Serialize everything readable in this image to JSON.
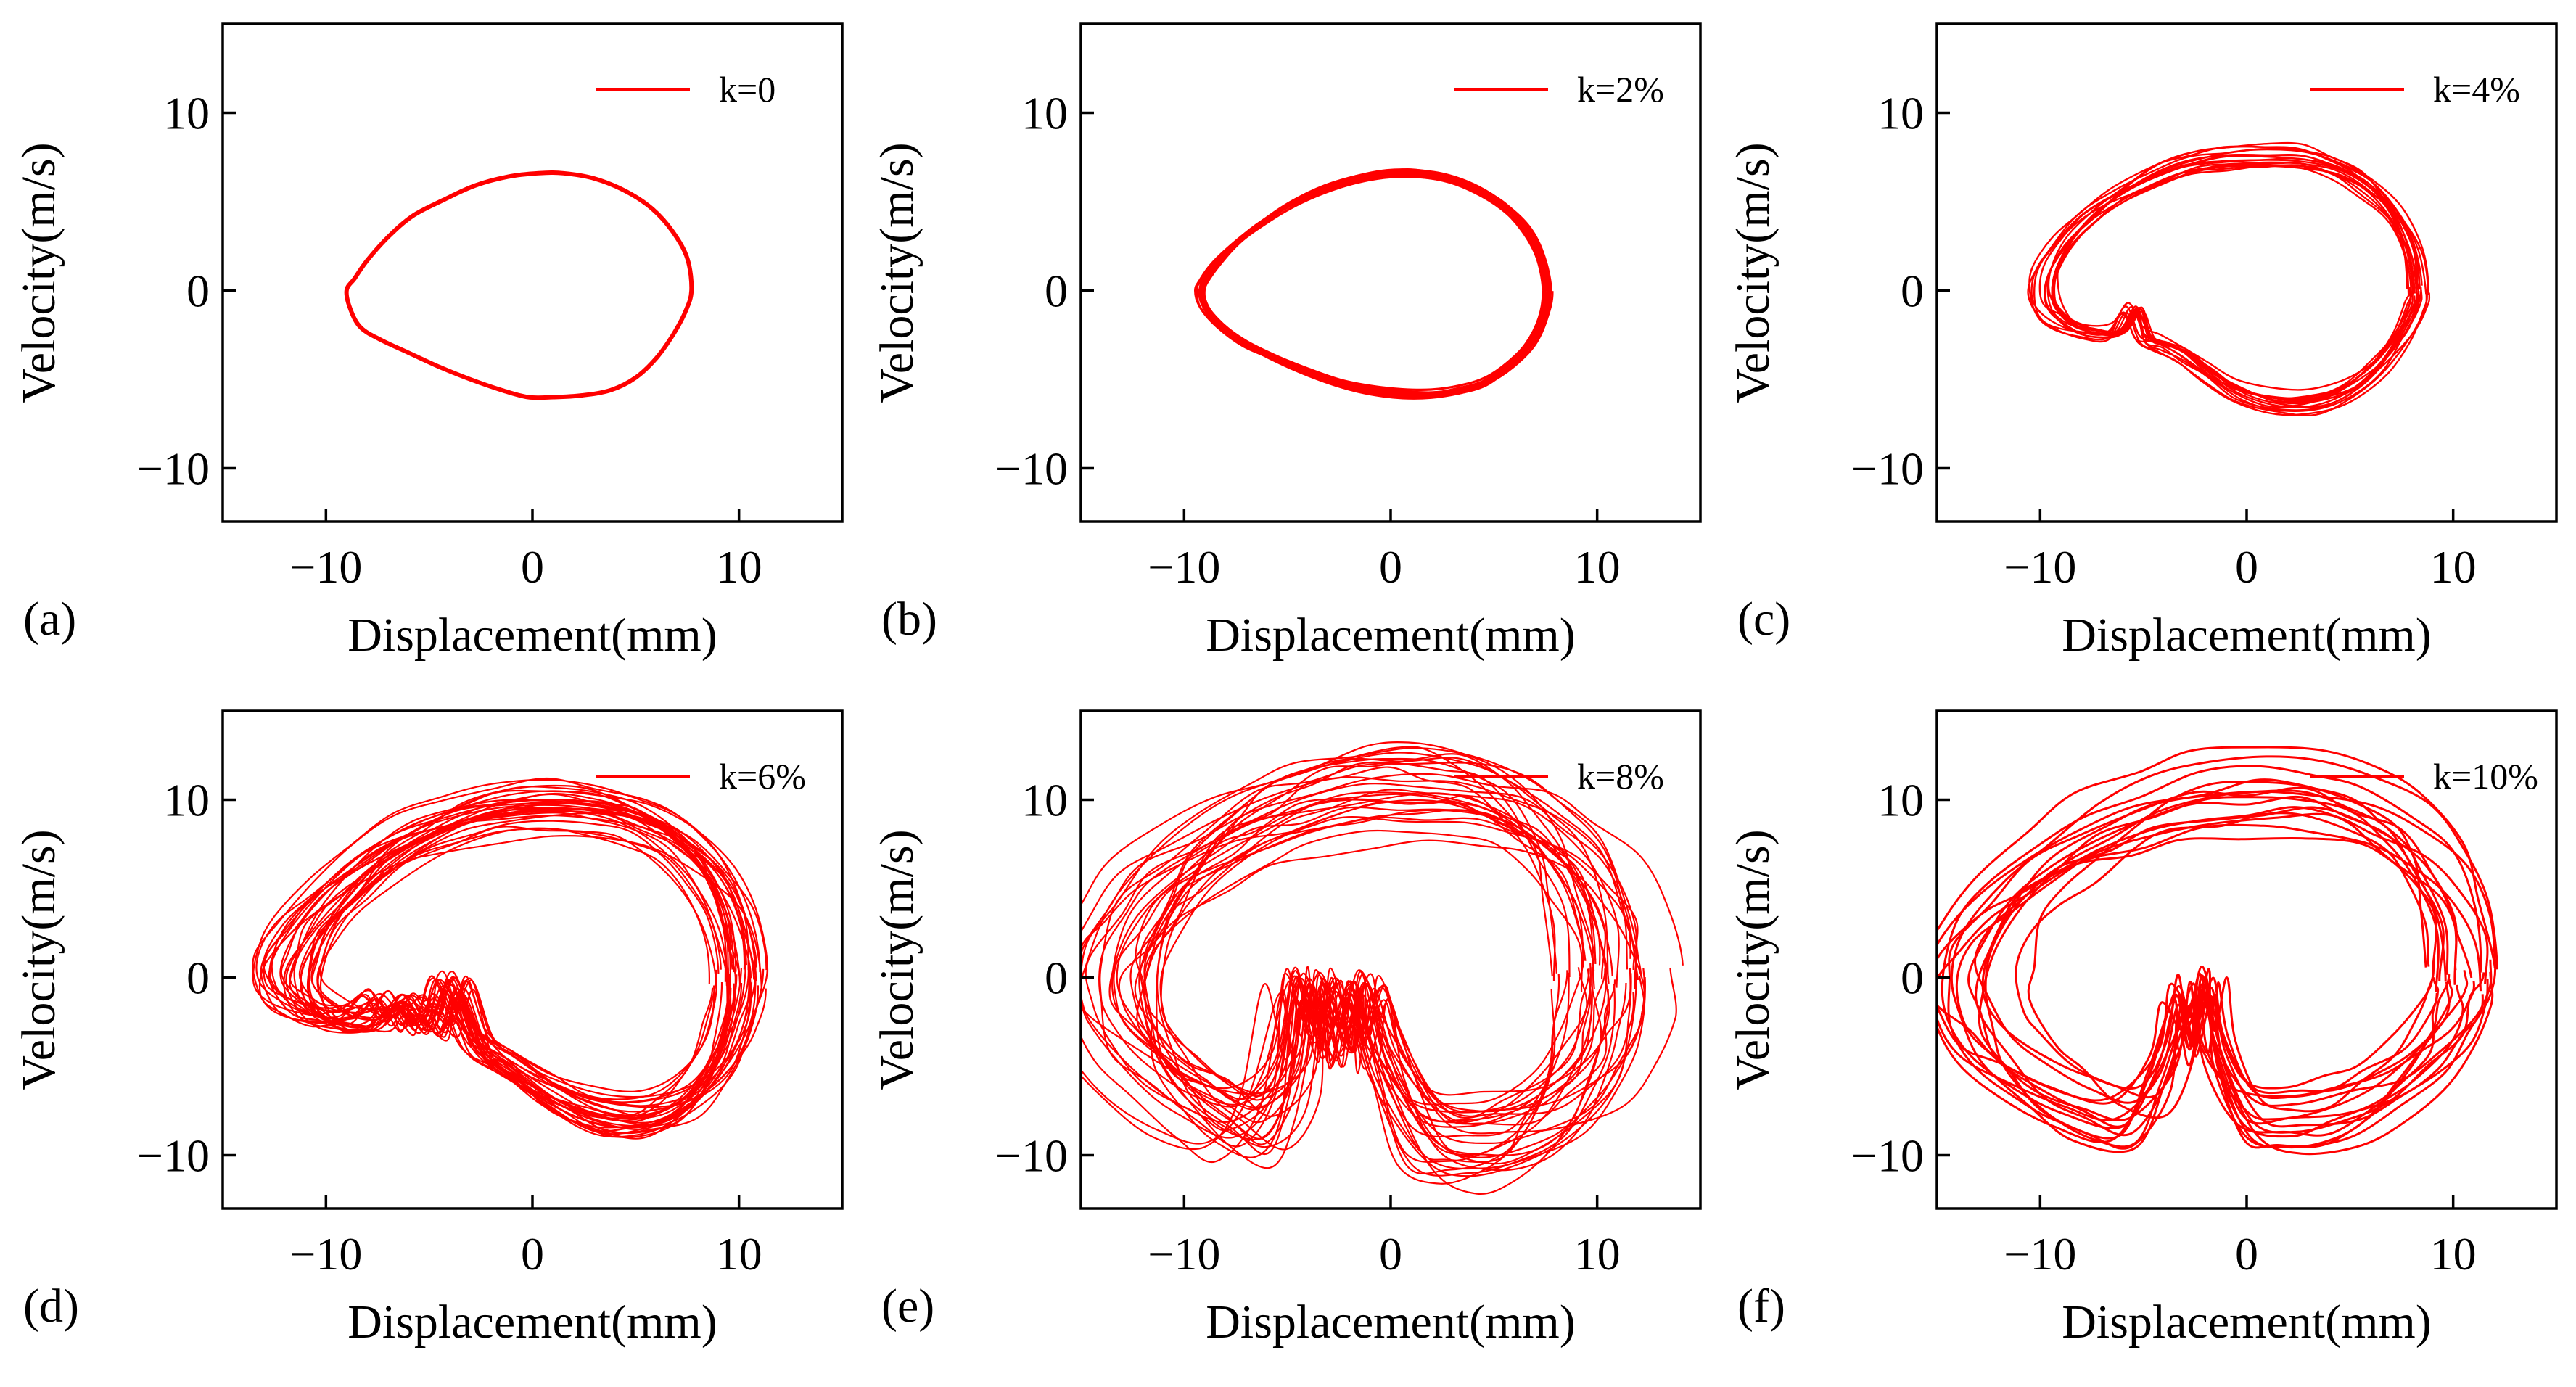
{
  "figure": {
    "panel_count": 6,
    "line_color": "#ff0000",
    "axis_color": "#000000"
  },
  "chart_data": [
    {
      "type": "line",
      "panel_label": "(a)",
      "legend": "k=0",
      "xlabel": "Displacement(mm)",
      "ylabel": "Velocity(m/s)",
      "xlim": [
        -15,
        15
      ],
      "ylim": [
        -13,
        15
      ],
      "xticks": [
        -10,
        0,
        10
      ],
      "xtick_labels": [
        "−10",
        "0",
        "10"
      ],
      "yticks": [
        -10,
        0,
        10
      ],
      "ytick_labels": [
        "−10",
        "0",
        "10"
      ],
      "grid": false,
      "legend_position": "top-right",
      "series": [
        {
          "name": "k=0",
          "description": "single closed limit cycle",
          "x": [
            7.7,
            7.5,
            6.8,
            5.8,
            4.5,
            3.0,
            1.5,
            0.3,
            -1.2,
            -2.8,
            -4.3,
            -5.8,
            -7.0,
            -8.0,
            -8.6,
            -9.0,
            -8.8,
            -8.3,
            -7.3,
            -6.0,
            -4.5,
            -3.0,
            -1.5,
            -0.2,
            1.0,
            2.4,
            3.8,
            5.0,
            6.0,
            6.8,
            7.4,
            7.7
          ],
          "y": [
            0.0,
            1.8,
            3.3,
            4.6,
            5.6,
            6.3,
            6.6,
            6.6,
            6.4,
            5.9,
            5.1,
            4.2,
            3.0,
            1.7,
            0.7,
            0.0,
            -1.1,
            -2.1,
            -2.8,
            -3.5,
            -4.3,
            -5.0,
            -5.6,
            -6.0,
            -6.0,
            -5.9,
            -5.6,
            -4.9,
            -3.8,
            -2.5,
            -1.2,
            0.0
          ]
        }
      ]
    },
    {
      "type": "line",
      "panel_label": "(b)",
      "legend": "k=2%",
      "xlabel": "Displacement(mm)",
      "ylabel": "Velocity(m/s)",
      "xlim": [
        -15,
        15
      ],
      "ylim": [
        -13,
        15
      ],
      "xticks": [
        -10,
        0,
        10
      ],
      "xtick_labels": [
        "−10",
        "0",
        "10"
      ],
      "yticks": [
        -10,
        0,
        10
      ],
      "ytick_labels": [
        "−10",
        "0",
        "10"
      ],
      "grid": false,
      "legend_position": "top-right",
      "series": [
        {
          "name": "k=2%",
          "description": "thick band of nearly coincident limit cycles",
          "x": [
            7.6,
            7.3,
            6.6,
            5.5,
            4.2,
            2.8,
            1.2,
            -0.2,
            -1.7,
            -3.3,
            -4.8,
            -6.2,
            -7.4,
            -8.4,
            -9.0,
            -9.2,
            -9.0,
            -8.2,
            -7.0,
            -5.6,
            -4.0,
            -2.4,
            -0.9,
            0.6,
            2.0,
            3.4,
            4.7,
            5.8,
            6.8,
            7.4,
            7.6
          ],
          "y": [
            0.0,
            1.9,
            3.5,
            4.8,
            5.7,
            6.3,
            6.6,
            6.6,
            6.3,
            5.7,
            4.9,
            3.9,
            2.8,
            1.6,
            0.6,
            0.0,
            -0.9,
            -2.0,
            -3.0,
            -3.8,
            -4.6,
            -5.2,
            -5.6,
            -5.8,
            -5.8,
            -5.6,
            -5.1,
            -4.2,
            -3.0,
            -1.5,
            0.0
          ]
        }
      ]
    },
    {
      "type": "line",
      "panel_label": "(c)",
      "legend": "k=4%",
      "xlabel": "Displacement(mm)",
      "ylabel": "Velocity(m/s)",
      "xlim": [
        -15,
        15
      ],
      "ylim": [
        -13,
        15
      ],
      "xticks": [
        -10,
        0,
        10
      ],
      "xtick_labels": [
        "−10",
        "0",
        "10"
      ],
      "yticks": [
        -10,
        0,
        10
      ],
      "ytick_labels": [
        "−10",
        "0",
        "10"
      ],
      "grid": false,
      "legend_position": "top-right",
      "series": [
        {
          "name": "k=4%",
          "description": "quasi-periodic band of cycles with small spikes near x=-5",
          "x": [
            8.4,
            8.1,
            7.2,
            5.9,
            4.4,
            2.8,
            1.0,
            -0.8,
            -2.6,
            -4.3,
            -6.0,
            -7.5,
            -8.7,
            -9.5,
            -9.7,
            -9.4,
            -8.6,
            -7.5,
            -6.2,
            -5.4,
            -4.8,
            -4.0,
            -3.0,
            -1.8,
            -0.3,
            1.5,
            3.3,
            5.0,
            6.5,
            7.7,
            8.3,
            8.4
          ],
          "y": [
            0.0,
            2.3,
            4.4,
            6.0,
            7.0,
            7.5,
            7.6,
            7.5,
            7.2,
            6.5,
            5.5,
            4.2,
            2.8,
            1.3,
            0.0,
            -1.1,
            -1.9,
            -2.3,
            -2.3,
            -1.0,
            -2.6,
            -3.0,
            -3.6,
            -4.6,
            -5.7,
            -6.3,
            -6.3,
            -5.6,
            -4.2,
            -2.4,
            -0.9,
            0.0
          ]
        }
      ]
    },
    {
      "type": "line",
      "panel_label": "(d)",
      "legend": "k=6%",
      "xlabel": "Displacement(mm)",
      "ylabel": "Velocity(m/s)",
      "xlim": [
        -15,
        15
      ],
      "ylim": [
        -13,
        15
      ],
      "xticks": [
        -10,
        0,
        10
      ],
      "xtick_labels": [
        "−10",
        "0",
        "10"
      ],
      "yticks": [
        -10,
        0,
        10
      ],
      "ytick_labels": [
        "−10",
        "0",
        "10"
      ],
      "grid": false,
      "legend_position": "top-right",
      "series": [
        {
          "name": "k=6%",
          "description": "dense band of many cycles with spikes between x=-7 and x=-3",
          "x": [
            10.0,
            9.6,
            8.6,
            7.0,
            5.2,
            3.2,
            1.0,
            -1.3,
            -3.5,
            -5.6,
            -7.6,
            -9.4,
            -10.8,
            -11.6,
            -11.6,
            -10.8,
            -9.4,
            -8.0,
            -7.0,
            -6.3,
            -5.6,
            -4.6,
            -3.8,
            -2.6,
            -1.0,
            1.0,
            3.2,
            5.4,
            7.3,
            8.8,
            9.7,
            10.0
          ],
          "y": [
            0.0,
            3.0,
            5.5,
            7.4,
            8.6,
            9.2,
            9.4,
            9.2,
            8.6,
            7.6,
            6.2,
            4.4,
            2.6,
            0.8,
            -0.6,
            -1.8,
            -2.4,
            -2.3,
            -1.4,
            -2.4,
            -1.6,
            -2.7,
            -0.4,
            -3.6,
            -5.0,
            -6.6,
            -7.6,
            -7.8,
            -6.9,
            -5.0,
            -2.5,
            0.0
          ]
        }
      ]
    },
    {
      "type": "line",
      "panel_label": "(e)",
      "legend": "k=8%",
      "xlabel": "Displacement(mm)",
      "ylabel": "Velocity(m/s)",
      "xlim": [
        -15,
        15
      ],
      "ylim": [
        -13,
        15
      ],
      "xticks": [
        -10,
        0,
        10
      ],
      "xtick_labels": [
        "−10",
        "0",
        "10"
      ],
      "yticks": [
        -10,
        0,
        10
      ],
      "ytick_labels": [
        "−10",
        "0",
        "10"
      ],
      "grid": false,
      "legend_position": "top-right",
      "series": [
        {
          "name": "k=8%",
          "description": "irregular, widely spread chaotic trajectories with spikes near x=-4 to x=-1",
          "x": [
            10.8,
            10.4,
            9.3,
            7.6,
            5.6,
            3.4,
            1.0,
            -1.5,
            -4.0,
            -6.4,
            -8.6,
            -10.6,
            -12.2,
            -13.3,
            -13.4,
            -12.6,
            -11.0,
            -9.0,
            -7.0,
            -5.2,
            -4.4,
            -3.6,
            -2.8,
            -2.0,
            -1.2,
            -0.2,
            1.8,
            4.2,
            6.6,
            8.6,
            10.0,
            10.7,
            10.8
          ],
          "y": [
            0.0,
            3.2,
            6.0,
            8.1,
            9.5,
            10.2,
            10.4,
            10.2,
            9.6,
            8.6,
            7.2,
            5.4,
            3.2,
            0.8,
            -1.6,
            -3.8,
            -5.8,
            -7.4,
            -8.4,
            -6.0,
            -0.5,
            -3.8,
            -0.8,
            -4.0,
            -0.7,
            -4.6,
            -8.6,
            -9.3,
            -8.8,
            -7.3,
            -5.1,
            -2.6,
            0.0
          ]
        }
      ]
    },
    {
      "type": "line",
      "panel_label": "(f)",
      "legend": "k=10%",
      "xlabel": "Displacement(mm)",
      "ylabel": "Velocity(m/s)",
      "xlim": [
        -15,
        15
      ],
      "ylim": [
        -13,
        15
      ],
      "xticks": [
        -10,
        0,
        10
      ],
      "xtick_labels": [
        "−10",
        "0",
        "10"
      ],
      "yticks": [
        -10,
        0,
        10
      ],
      "ytick_labels": [
        "−10",
        "0",
        "10"
      ],
      "grid": false,
      "legend_position": "top-right",
      "series": [
        {
          "name": "k=10%",
          "description": "sparse irregular trajectories with spikes near x=-3 to x=-1",
          "x": [
            10.0,
            9.7,
            8.7,
            7.1,
            5.1,
            2.8,
            0.4,
            -2.2,
            -4.7,
            -7.1,
            -9.3,
            -11.2,
            -12.6,
            -13.3,
            -13.1,
            -12.0,
            -10.2,
            -8.0,
            -5.6,
            -4.0,
            -3.2,
            -2.6,
            -2.0,
            -1.4,
            0.0,
            2.0,
            4.2,
            6.3,
            8.0,
            9.3,
            9.9,
            10.0
          ],
          "y": [
            0.0,
            3.1,
            5.8,
            7.9,
            9.3,
            10.0,
            10.1,
            9.8,
            9.0,
            7.8,
            6.2,
            4.3,
            2.2,
            0.0,
            -2.3,
            -4.3,
            -6.2,
            -7.6,
            -8.2,
            -5.0,
            -1.2,
            -3.8,
            -0.5,
            -4.2,
            -7.8,
            -8.2,
            -7.8,
            -6.6,
            -5.0,
            -3.2,
            -1.4,
            0.0
          ]
        }
      ]
    }
  ]
}
